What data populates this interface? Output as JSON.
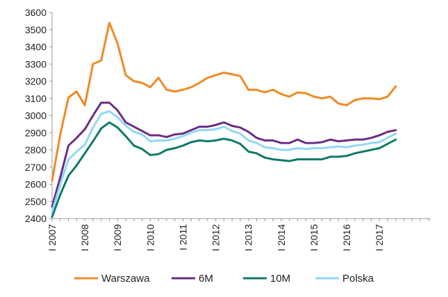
{
  "chart_data": {
    "type": "line",
    "title": "",
    "xlabel": "",
    "ylabel": "",
    "ylim": [
      2400,
      3600
    ],
    "yticks": [
      "2400",
      "2500",
      "2600",
      "2700",
      "2800",
      "2900",
      "3000",
      "3100",
      "3200",
      "3300",
      "3400",
      "3500",
      "3600"
    ],
    "x_tick_labels": [
      "I 2007",
      "I 2008",
      "I 2009",
      "I 2010",
      "I 2011",
      "I 2012",
      "I 2013",
      "I 2014",
      "I 2015",
      "I 2016",
      "I 2017"
    ],
    "x_start_year": 2007,
    "x_unit": "quarter",
    "grid": false,
    "legend": "bottom",
    "series": [
      {
        "name": "Warszawa",
        "color": "#F08A24",
        "values": [
          2620,
          2890,
          3105,
          3140,
          3060,
          3300,
          3320,
          3540,
          3420,
          3235,
          3200,
          3190,
          3165,
          3220,
          3150,
          3140,
          3150,
          3165,
          3190,
          3220,
          3235,
          3250,
          3240,
          3230,
          3150,
          3150,
          3135,
          3150,
          3125,
          3110,
          3135,
          3130,
          3110,
          3100,
          3110,
          3070,
          3060,
          3090,
          3100,
          3100,
          3095,
          3110,
          3170
        ]
      },
      {
        "name": "6M",
        "color": "#6B2C84",
        "values": [
          2470,
          2640,
          2825,
          2870,
          2920,
          3000,
          3075,
          3075,
          3030,
          2960,
          2935,
          2910,
          2885,
          2885,
          2875,
          2890,
          2895,
          2915,
          2935,
          2935,
          2945,
          2960,
          2940,
          2930,
          2905,
          2870,
          2855,
          2855,
          2840,
          2840,
          2860,
          2840,
          2840,
          2845,
          2860,
          2850,
          2855,
          2860,
          2860,
          2870,
          2885,
          2905,
          2915
        ]
      },
      {
        "name": "10M",
        "color": "#0E7A67",
        "values": [
          2410,
          2540,
          2650,
          2710,
          2780,
          2850,
          2925,
          2960,
          2930,
          2880,
          2825,
          2805,
          2770,
          2775,
          2800,
          2810,
          2825,
          2845,
          2855,
          2850,
          2855,
          2865,
          2855,
          2835,
          2790,
          2780,
          2755,
          2745,
          2740,
          2735,
          2745,
          2745,
          2745,
          2745,
          2760,
          2760,
          2765,
          2780,
          2790,
          2800,
          2810,
          2835,
          2860
        ]
      },
      {
        "name": "Polska",
        "color": "#8ED8F8",
        "values": [
          2440,
          2600,
          2745,
          2790,
          2830,
          2930,
          3010,
          3025,
          2990,
          2940,
          2905,
          2890,
          2850,
          2855,
          2855,
          2865,
          2880,
          2900,
          2915,
          2915,
          2920,
          2935,
          2910,
          2895,
          2855,
          2840,
          2815,
          2810,
          2800,
          2800,
          2810,
          2805,
          2810,
          2810,
          2815,
          2820,
          2815,
          2825,
          2830,
          2840,
          2845,
          2870,
          2895
        ]
      }
    ]
  }
}
